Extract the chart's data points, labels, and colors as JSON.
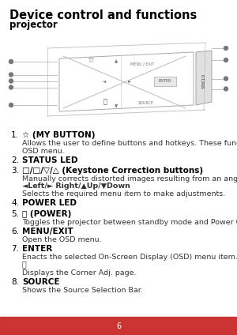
{
  "title": "Device control and functions",
  "subtitle": "projector",
  "bg_color": "#ffffff",
  "footer_color": "#cc3333",
  "footer_text": "6",
  "items": [
    {
      "num": "1.",
      "label": "☆ (MY BUTTON)",
      "desc_lines": [
        {
          "text": "Allows the user to define buttons and hotkeys. These functions can be set using the",
          "bold": false
        },
        {
          "text": "OSD menu.",
          "bold": false
        }
      ]
    },
    {
      "num": "2.",
      "label": "STATUS LED",
      "desc_lines": []
    },
    {
      "num": "3.",
      "label": "□/□/▽/△ (Keystone Correction buttons)",
      "desc_lines": [
        {
          "text": "Manually corrects distorted images resulting from an angled projection.",
          "bold": false
        },
        {
          "text": "◄Left/► Right/▲Up/▼Down",
          "bold": true
        },
        {
          "text": "Selects the required menu item to make adjustments.",
          "bold": false
        }
      ]
    },
    {
      "num": "4.",
      "label": "POWER LED",
      "desc_lines": []
    },
    {
      "num": "5.",
      "label": "⏻ (POWER)",
      "desc_lines": [
        {
          "text": "Toggles the projector between standby mode and Power ON.",
          "bold": false
        }
      ]
    },
    {
      "num": "6.",
      "label": "MENU/EXIT",
      "desc_lines": [
        {
          "text": "Open the OSD menu.",
          "bold": false
        }
      ]
    },
    {
      "num": "7.",
      "label": "ENTER",
      "desc_lines": [
        {
          "text": "Enacts the selected On-Screen Display (OSD) menu item.",
          "bold": false
        },
        {
          "text": "⎗",
          "bold": false
        },
        {
          "text": "Displays the Corner Adj. page.",
          "bold": false
        }
      ]
    },
    {
      "num": "8.",
      "label": "SOURCE",
      "desc_lines": [
        {
          "text": "Shows the Source Selection Bar.",
          "bold": false
        }
      ]
    }
  ]
}
